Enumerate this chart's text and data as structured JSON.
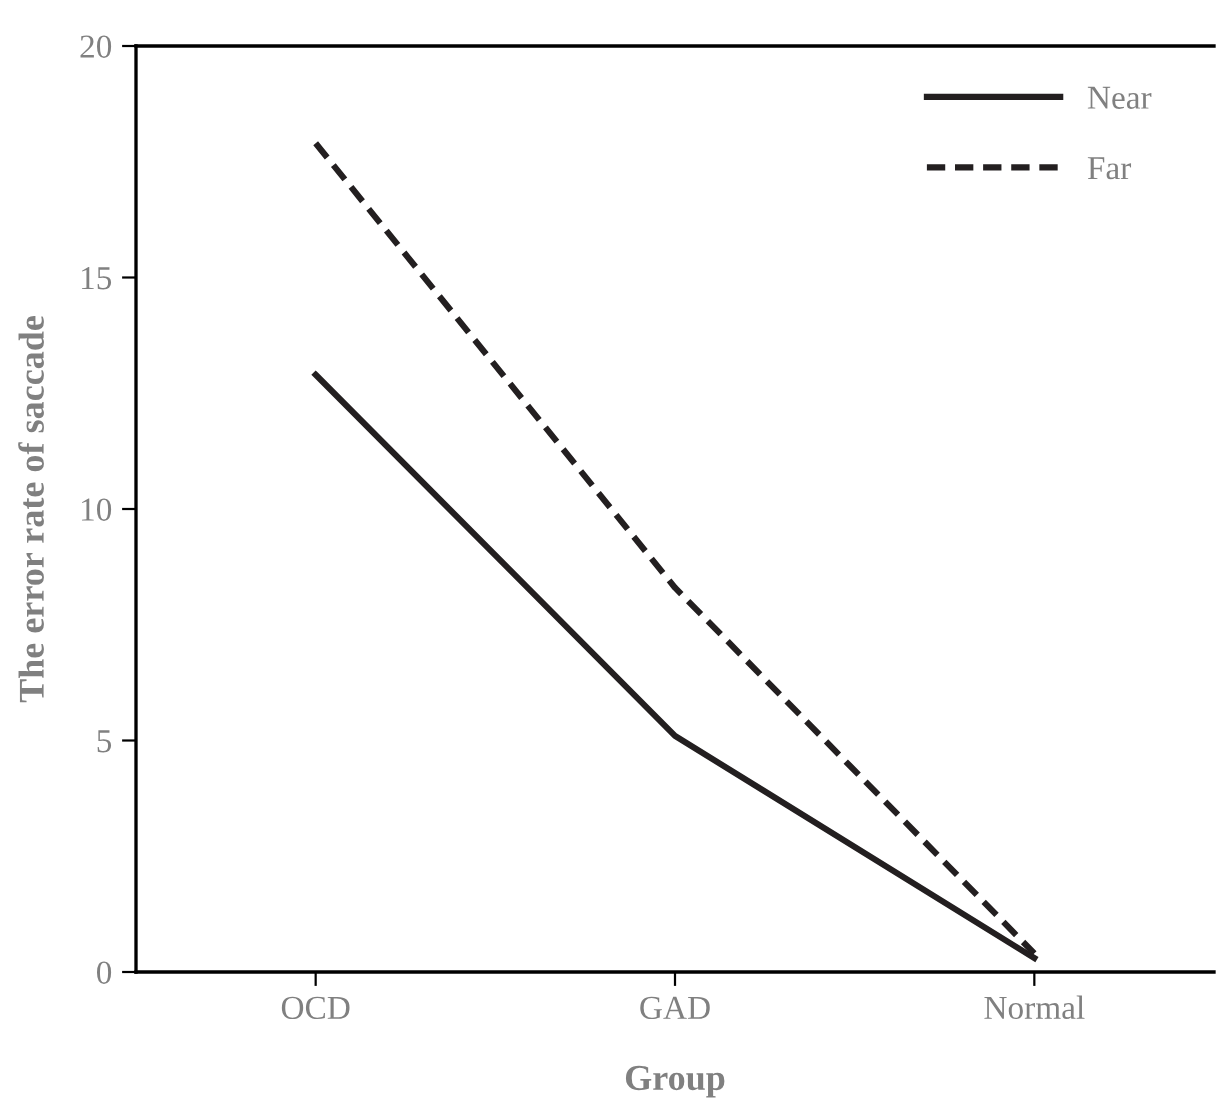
{
  "chart_data": {
    "type": "line",
    "xlabel": "Group",
    "ylabel": "The error rate of saccade",
    "categories": [
      "OCD",
      "GAD",
      "Normal"
    ],
    "series": [
      {
        "name": "Near",
        "color": "#231f20",
        "line_style": "solid",
        "values": [
          12.9,
          5.1,
          0.3
        ]
      },
      {
        "name": "Far",
        "color": "#231f20",
        "line_style": "dashed",
        "values": [
          17.9,
          8.3,
          0.4
        ]
      }
    ],
    "ylim": [
      0,
      20
    ],
    "yticks": [
      0,
      5,
      10,
      15,
      20
    ],
    "grid": false,
    "legend": "top right",
    "marker": "none"
  }
}
